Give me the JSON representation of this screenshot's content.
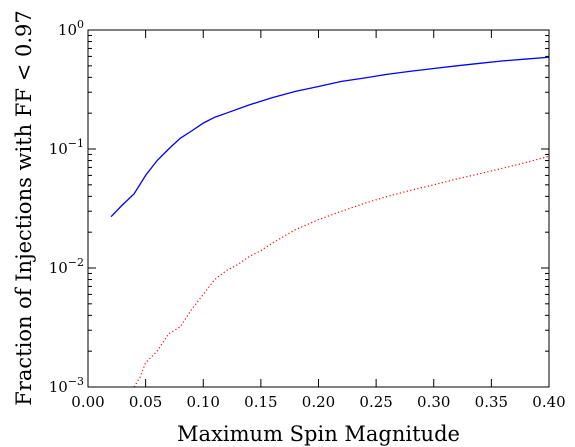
{
  "chart_data": {
    "type": "line",
    "xlabel": "Maximum Spin Magnitude",
    "ylabel": "Fraction of Injections with FF < 0.97",
    "xlim": [
      0.0,
      0.4
    ],
    "ylim": [
      0.001,
      1
    ],
    "yscale": "log",
    "grid": false,
    "x_ticks": [
      0.0,
      0.05,
      0.1,
      0.15,
      0.2,
      0.25,
      0.3,
      0.35,
      0.4
    ],
    "x_tick_labels": [
      "0.00",
      "0.05",
      "0.10",
      "0.15",
      "0.20",
      "0.25",
      "0.30",
      "0.35",
      "0.40"
    ],
    "y_ticks": [
      {
        "value": 0.001,
        "base": "10",
        "exp": "−3"
      },
      {
        "value": 0.01,
        "base": "10",
        "exp": "−2"
      },
      {
        "value": 0.1,
        "base": "10",
        "exp": "−1"
      },
      {
        "value": 1,
        "base": "10",
        "exp": "0"
      }
    ],
    "series": [
      {
        "style": "solid",
        "color": "#0000ff",
        "x": [
          0.02,
          0.03,
          0.04,
          0.05,
          0.06,
          0.07,
          0.08,
          0.09,
          0.1,
          0.11,
          0.12,
          0.14,
          0.16,
          0.18,
          0.2,
          0.22,
          0.24,
          0.26,
          0.28,
          0.3,
          0.32,
          0.34,
          0.36,
          0.38,
          0.4
        ],
        "y": [
          0.027,
          0.034,
          0.042,
          0.06,
          0.08,
          0.1,
          0.123,
          0.142,
          0.165,
          0.185,
          0.2,
          0.235,
          0.27,
          0.305,
          0.335,
          0.37,
          0.395,
          0.425,
          0.45,
          0.475,
          0.5,
          0.525,
          0.55,
          0.57,
          0.59
        ]
      },
      {
        "style": "dotted",
        "color": "#ff0000",
        "x": [
          0.04,
          0.045,
          0.05,
          0.06,
          0.07,
          0.08,
          0.09,
          0.1,
          0.11,
          0.12,
          0.13,
          0.14,
          0.15,
          0.16,
          0.18,
          0.2,
          0.22,
          0.24,
          0.26,
          0.28,
          0.3,
          0.32,
          0.34,
          0.36,
          0.38,
          0.4
        ],
        "y": [
          0.001,
          0.0012,
          0.0016,
          0.002,
          0.0028,
          0.0032,
          0.0045,
          0.006,
          0.008,
          0.0095,
          0.0107,
          0.0125,
          0.014,
          0.0162,
          0.021,
          0.0255,
          0.03,
          0.035,
          0.04,
          0.045,
          0.05,
          0.056,
          0.062,
          0.069,
          0.077,
          0.087
        ]
      }
    ]
  }
}
